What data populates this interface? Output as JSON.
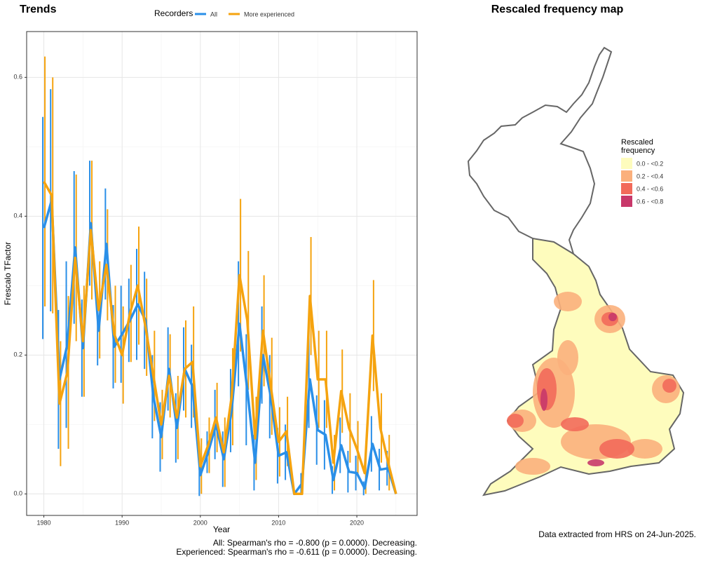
{
  "chart_data": {
    "type": "line",
    "title": "Trends",
    "xlabel": "Year",
    "ylabel": "Frescalo TFactor",
    "legend_title": "Recorders",
    "legend_position": "top",
    "x": [
      1980,
      1981,
      1982,
      1983,
      1984,
      1985,
      1986,
      1987,
      1988,
      1989,
      1990,
      1991,
      1992,
      1993,
      1994,
      1995,
      1996,
      1997,
      1998,
      1999,
      2000,
      2001,
      2002,
      2003,
      2004,
      2005,
      2006,
      2007,
      2008,
      2009,
      2010,
      2011,
      2012,
      2013,
      2014,
      2015,
      2016,
      2017,
      2018,
      2019,
      2020,
      2021,
      2022,
      2023,
      2024,
      2025
    ],
    "series": [
      {
        "name": "All",
        "color": "#2a8fe8",
        "values": [
          0.383,
          0.423,
          0.165,
          0.215,
          0.355,
          0.21,
          0.39,
          0.235,
          0.36,
          0.212,
          0.23,
          0.25,
          0.273,
          0.25,
          0.14,
          0.082,
          0.18,
          0.095,
          0.18,
          0.155,
          0.027,
          0.06,
          0.1,
          0.05,
          0.12,
          0.245,
          0.15,
          0.045,
          0.2,
          0.14,
          0.055,
          0.06,
          0.0,
          0.015,
          0.165,
          0.092,
          0.085,
          0.02,
          0.07,
          0.032,
          0.03,
          0.008,
          0.072,
          0.035,
          0.037,
          0.0
        ],
        "errors": [
          0.16,
          0.16,
          0.1,
          0.12,
          0.11,
          0.07,
          0.09,
          0.05,
          0.08,
          0.06,
          0.07,
          0.06,
          0.08,
          0.07,
          0.06,
          0.05,
          0.06,
          0.05,
          0.06,
          0.06,
          0.03,
          0.03,
          0.05,
          0.04,
          0.06,
          0.09,
          0.08,
          0.04,
          0.07,
          0.06,
          0.04,
          0.04,
          0.0,
          0.015,
          0.07,
          0.05,
          0.05,
          0.02,
          0.04,
          0.03,
          0.025,
          0.01,
          0.04,
          0.03,
          0.025,
          0.0
        ]
      },
      {
        "name": "More experienced",
        "color": "#f5a30f",
        "values": [
          0.45,
          0.43,
          0.13,
          0.175,
          0.34,
          0.22,
          0.38,
          0.265,
          0.33,
          0.23,
          0.2,
          0.26,
          0.3,
          0.24,
          0.17,
          0.1,
          0.17,
          0.11,
          0.18,
          0.19,
          0.04,
          0.07,
          0.11,
          0.06,
          0.14,
          0.315,
          0.25,
          0.08,
          0.235,
          0.155,
          0.075,
          0.09,
          0.0,
          0.0,
          0.285,
          0.165,
          0.165,
          0.045,
          0.148,
          0.095,
          0.065,
          0.03,
          0.228,
          0.095,
          0.045,
          0.0
        ],
        "errors": [
          0.18,
          0.17,
          0.09,
          0.11,
          0.12,
          0.08,
          0.1,
          0.07,
          0.08,
          0.07,
          0.07,
          0.07,
          0.085,
          0.07,
          0.065,
          0.05,
          0.06,
          0.06,
          0.07,
          0.08,
          0.04,
          0.04,
          0.05,
          0.05,
          0.07,
          0.11,
          0.1,
          0.06,
          0.08,
          0.07,
          0.05,
          0.05,
          0.0,
          0.0,
          0.085,
          0.07,
          0.07,
          0.04,
          0.06,
          0.05,
          0.04,
          0.03,
          0.08,
          0.05,
          0.04,
          0.0
        ]
      }
    ],
    "xlim": [
      1977.8,
      2027.7
    ],
    "ylim": [
      -0.031,
      0.666
    ],
    "xticks": [
      1980,
      1990,
      2000,
      2010,
      2020
    ],
    "yticks": [
      {
        "value": 0,
        "label": "0.0"
      },
      0.2,
      0.4,
      0.6
    ],
    "xminor": [
      1985,
      1995,
      2005,
      2015,
      2025
    ],
    "yminor": [
      0.1,
      0.3,
      0.5
    ],
    "grid": true,
    "annotations": [
      "All: Spearman's rho = -0.800 (p = 0.0000). Decreasing.",
      "Experienced: Spearman's rho = -0.611 (p = 0.0000). Decreasing."
    ]
  },
  "map": {
    "title": "Rescaled frequency map",
    "legend": {
      "title": [
        "Rescaled",
        "frequency"
      ],
      "items": [
        {
          "label": "0.0 - <0.2",
          "color": "#fefcbd"
        },
        {
          "label": "0.2 - <0.4",
          "color": "#fbb07c"
        },
        {
          "label": "0.4 - <0.6",
          "color": "#f26a5a"
        },
        {
          "label": "0.6 - <0.8",
          "color": "#c8386a"
        }
      ]
    },
    "footer": "Data extracted from HRS on 24-Jun-2025."
  }
}
